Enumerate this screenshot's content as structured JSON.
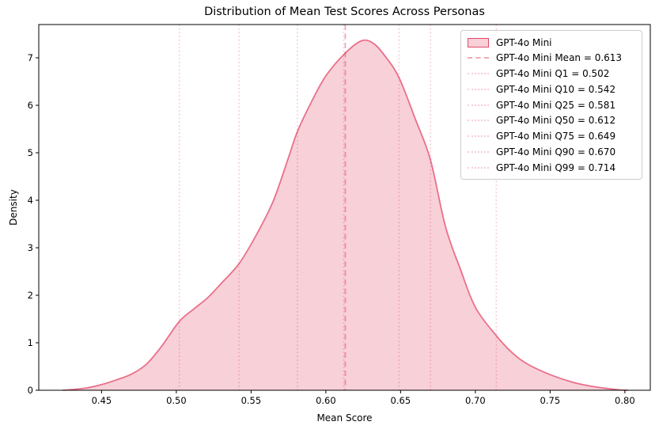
{
  "chart_data": {
    "type": "area",
    "subtype": "kde-density",
    "title": "Distribution of Mean Test Scores Across Personas",
    "xlabel": "Mean Score",
    "ylabel": "Density",
    "xlim": [
      0.408,
      0.817
    ],
    "ylim": [
      0,
      7.7
    ],
    "grid": false,
    "legend_position": "upper right",
    "x_ticks": [
      {
        "v": 0.45,
        "label": "0.45"
      },
      {
        "v": 0.5,
        "label": "0.50"
      },
      {
        "v": 0.55,
        "label": "0.55"
      },
      {
        "v": 0.6,
        "label": "0.60"
      },
      {
        "v": 0.65,
        "label": "0.65"
      },
      {
        "v": 0.7,
        "label": "0.70"
      },
      {
        "v": 0.75,
        "label": "0.75"
      },
      {
        "v": 0.8,
        "label": "0.80"
      }
    ],
    "y_ticks": [
      {
        "v": 0,
        "label": "0"
      },
      {
        "v": 1,
        "label": "1"
      },
      {
        "v": 2,
        "label": "2"
      },
      {
        "v": 3,
        "label": "3"
      },
      {
        "v": 4,
        "label": "4"
      },
      {
        "v": 5,
        "label": "5"
      },
      {
        "v": 6,
        "label": "6"
      },
      {
        "v": 7,
        "label": "7"
      }
    ],
    "series": [
      {
        "name": "GPT-4o Mini",
        "peak": {
          "x": 0.624,
          "density": 7.36
        },
        "points": [
          [
            0.424,
            0.0
          ],
          [
            0.432,
            0.02
          ],
          [
            0.44,
            0.05
          ],
          [
            0.45,
            0.12
          ],
          [
            0.46,
            0.22
          ],
          [
            0.47,
            0.34
          ],
          [
            0.48,
            0.55
          ],
          [
            0.49,
            0.92
          ],
          [
            0.502,
            1.45
          ],
          [
            0.512,
            1.72
          ],
          [
            0.521,
            1.95
          ],
          [
            0.53,
            2.25
          ],
          [
            0.542,
            2.67
          ],
          [
            0.554,
            3.3
          ],
          [
            0.565,
            4.0
          ],
          [
            0.575,
            4.9
          ],
          [
            0.581,
            5.45
          ],
          [
            0.59,
            6.05
          ],
          [
            0.6,
            6.62
          ],
          [
            0.613,
            7.1
          ],
          [
            0.624,
            7.36
          ],
          [
            0.632,
            7.3
          ],
          [
            0.64,
            7.02
          ],
          [
            0.649,
            6.58
          ],
          [
            0.66,
            5.7
          ],
          [
            0.67,
            4.85
          ],
          [
            0.68,
            3.45
          ],
          [
            0.69,
            2.55
          ],
          [
            0.7,
            1.75
          ],
          [
            0.714,
            1.15
          ],
          [
            0.725,
            0.78
          ],
          [
            0.735,
            0.55
          ],
          [
            0.75,
            0.33
          ],
          [
            0.765,
            0.17
          ],
          [
            0.775,
            0.1
          ],
          [
            0.785,
            0.05
          ],
          [
            0.796,
            0.01
          ],
          [
            0.802,
            0.0
          ]
        ]
      }
    ],
    "stat_lines": [
      {
        "name": "mean",
        "label": "GPT-4o Mini Mean = 0.613",
        "value": 0.613,
        "style": "dashed"
      },
      {
        "name": "q1",
        "label": "GPT-4o Mini Q1 = 0.502",
        "value": 0.502,
        "style": "dotted"
      },
      {
        "name": "q10",
        "label": "GPT-4o Mini Q10 = 0.542",
        "value": 0.542,
        "style": "dotted"
      },
      {
        "name": "q25",
        "label": "GPT-4o Mini Q25 = 0.581",
        "value": 0.581,
        "style": "dotted"
      },
      {
        "name": "q50",
        "label": "GPT-4o Mini Q50 = 0.612",
        "value": 0.612,
        "style": "dotted"
      },
      {
        "name": "q75",
        "label": "GPT-4o Mini Q75 = 0.649",
        "value": 0.649,
        "style": "dotted"
      },
      {
        "name": "q90",
        "label": "GPT-4o Mini Q90 = 0.670",
        "value": 0.67,
        "style": "dotted"
      },
      {
        "name": "q99",
        "label": "GPT-4o Mini Q99 = 0.714",
        "value": 0.714,
        "style": "dotted"
      }
    ],
    "colors": {
      "base": "#DC143C",
      "fill": "rgba(220,20,60,0.20)",
      "line": "rgba(220,20,60,0.56)",
      "dashed_line": "rgba(220,20,60,0.38)",
      "dotted_line": "rgba(220,20,60,0.22)",
      "swatch_border": "rgba(220,20,60,0.72)",
      "frame": "#000000",
      "legend_border": "#cccccc"
    }
  }
}
